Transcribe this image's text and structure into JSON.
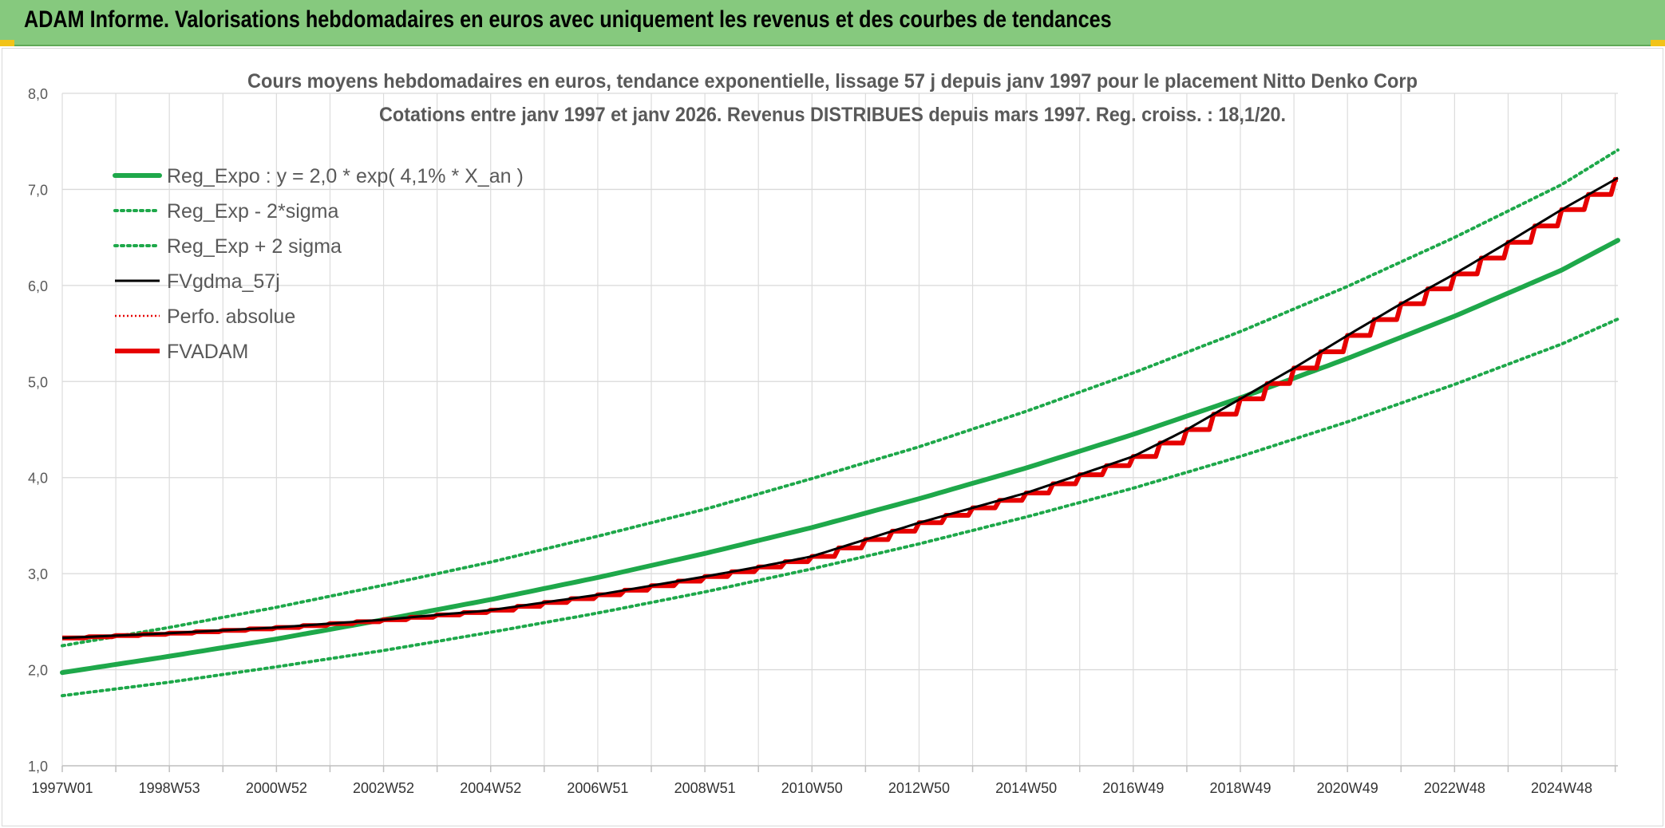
{
  "header": {
    "title": "ADAM Informe. Valorisations hebdomadaires en euros avec uniquement les revenus et des courbes de tendances"
  },
  "chart_data": {
    "type": "line",
    "title_line1": "Cours moyens hebdomadaires en euros, tendance exponentielle, lissage 57 j depuis janv 1997 pour le placement Nitto Denko Corp",
    "title_line2": "Cotations entre janv 1997 et janv 2026. Revenus DISTRIBUES depuis mars 1997. Reg. croiss. : 18,1/20.",
    "x_range": [
      1997.0,
      2026.05
    ],
    "ylim": [
      1.0,
      8.0
    ],
    "y_ticks": [
      "1,0",
      "2,0",
      "3,0",
      "4,0",
      "5,0",
      "6,0",
      "7,0",
      "8,0"
    ],
    "x_ticks": [
      {
        "label": "1997W01",
        "x": 1997.0
      },
      {
        "label": "1998W53",
        "x": 1999.0
      },
      {
        "label": "2000W52",
        "x": 2001.0
      },
      {
        "label": "2002W52",
        "x": 2003.0
      },
      {
        "label": "2004W52",
        "x": 2005.0
      },
      {
        "label": "2006W51",
        "x": 2007.0
      },
      {
        "label": "2008W51",
        "x": 2009.0
      },
      {
        "label": "2010W50",
        "x": 2011.0
      },
      {
        "label": "2012W50",
        "x": 2013.0
      },
      {
        "label": "2014W50",
        "x": 2015.0
      },
      {
        "label": "2016W49",
        "x": 2017.0
      },
      {
        "label": "2018W49",
        "x": 2019.0
      },
      {
        "label": "2020W49",
        "x": 2021.0
      },
      {
        "label": "2022W48",
        "x": 2023.0
      },
      {
        "label": "2024W48",
        "x": 2025.0
      }
    ],
    "grid": true,
    "legend_position": "top-left",
    "colors": {
      "reg": "#1ea84a",
      "black": "#000000",
      "red": "#e60000"
    },
    "series": [
      {
        "name": "Reg_Expo : y = 2,0 * exp( 4,1% *  X_an )",
        "key": "reg",
        "style": "solid-thick",
        "x": [
          1997.0,
          1999.0,
          2001.0,
          2003.0,
          2005.0,
          2007.0,
          2009.0,
          2011.0,
          2013.0,
          2015.0,
          2017.0,
          2019.0,
          2021.0,
          2023.0,
          2025.0,
          2026.05
        ],
        "y": [
          1.97,
          2.14,
          2.32,
          2.52,
          2.73,
          2.96,
          3.21,
          3.48,
          3.78,
          4.1,
          4.45,
          4.83,
          5.24,
          5.68,
          6.16,
          6.47
        ]
      },
      {
        "name": "Reg_Exp - 2*sigma",
        "key": "low",
        "style": "dotted",
        "x": [
          1997.0,
          1999.0,
          2001.0,
          2003.0,
          2005.0,
          2007.0,
          2009.0,
          2011.0,
          2013.0,
          2015.0,
          2017.0,
          2019.0,
          2021.0,
          2023.0,
          2025.0,
          2026.05
        ],
        "y": [
          1.73,
          1.87,
          2.03,
          2.2,
          2.39,
          2.59,
          2.81,
          3.05,
          3.31,
          3.59,
          3.89,
          4.22,
          4.58,
          4.97,
          5.39,
          5.65
        ]
      },
      {
        "name": "Reg_Exp + 2 sigma",
        "key": "high",
        "style": "dotted",
        "x": [
          1997.0,
          1999.0,
          2001.0,
          2003.0,
          2005.0,
          2007.0,
          2009.0,
          2011.0,
          2013.0,
          2015.0,
          2017.0,
          2019.0,
          2021.0,
          2023.0,
          2025.0,
          2026.05
        ],
        "y": [
          2.25,
          2.44,
          2.65,
          2.88,
          3.12,
          3.39,
          3.67,
          3.99,
          4.32,
          4.69,
          5.09,
          5.52,
          5.99,
          6.5,
          7.05,
          7.41
        ]
      },
      {
        "name": "FVgdma_57j",
        "key": "black",
        "style": "solid-thin",
        "x": [
          1997.0,
          1999.0,
          2001.0,
          2003.0,
          2005.0,
          2007.0,
          2009.0,
          2010.0,
          2011.0,
          2013.0,
          2015.0,
          2017.0,
          2018.0,
          2019.0,
          2020.0,
          2021.0,
          2022.0,
          2023.0,
          2024.0,
          2025.0,
          2026.05
        ],
        "y": [
          2.33,
          2.38,
          2.44,
          2.52,
          2.62,
          2.78,
          2.97,
          3.07,
          3.18,
          3.53,
          3.84,
          4.22,
          4.5,
          4.82,
          5.14,
          5.48,
          5.81,
          6.12,
          6.45,
          6.79,
          7.12
        ]
      },
      {
        "name": "Perfo. absolue",
        "key": "perfo",
        "style": "dotted-red",
        "x": [],
        "y": []
      },
      {
        "name": "FVADAM",
        "key": "red",
        "style": "step",
        "x": [
          1997.0,
          1999.0,
          2001.0,
          2003.0,
          2005.0,
          2007.0,
          2009.0,
          2010.0,
          2011.0,
          2013.0,
          2015.0,
          2017.0,
          2018.0,
          2019.0,
          2020.0,
          2021.0,
          2022.0,
          2023.0,
          2024.0,
          2025.0,
          2026.05
        ],
        "y": [
          2.33,
          2.38,
          2.44,
          2.52,
          2.62,
          2.78,
          2.97,
          3.07,
          3.18,
          3.53,
          3.84,
          4.22,
          4.5,
          4.82,
          5.14,
          5.48,
          5.81,
          6.12,
          6.45,
          6.79,
          7.12
        ]
      }
    ]
  }
}
